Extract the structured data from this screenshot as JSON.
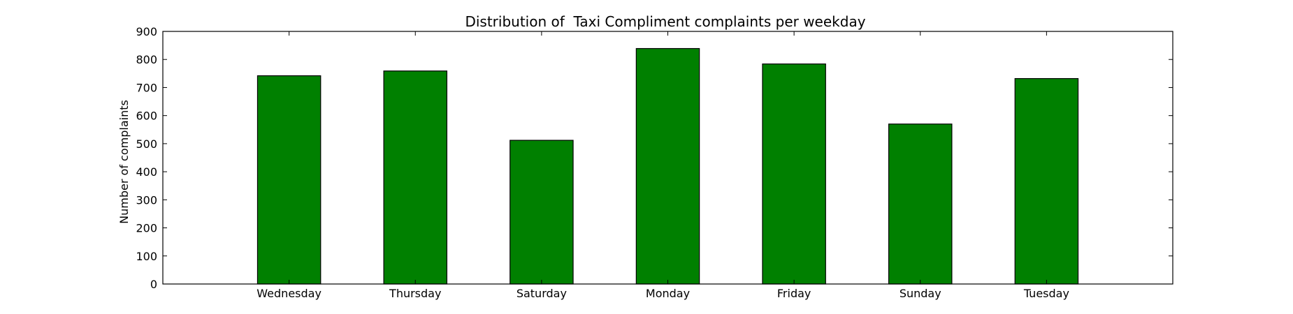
{
  "chart_data": {
    "type": "bar",
    "title": "Distribution of  Taxi Compliment complaints per weekday",
    "xlabel": "",
    "ylabel": "Number of complaints",
    "categories": [
      "Wednesday",
      "Thursday",
      "Saturday",
      "Monday",
      "Friday",
      "Sunday",
      "Tuesday"
    ],
    "values": [
      742,
      759,
      512,
      839,
      784,
      570,
      732
    ],
    "ylim": [
      0,
      900
    ],
    "yticks": [
      0,
      100,
      200,
      300,
      400,
      500,
      600,
      700,
      800,
      900
    ],
    "yticks_labels": [
      "0",
      "100",
      "200",
      "300",
      "400",
      "500",
      "600",
      "700",
      "800",
      "900"
    ],
    "grid": false,
    "bar_color": "#008000",
    "edge_color": "#000000"
  }
}
